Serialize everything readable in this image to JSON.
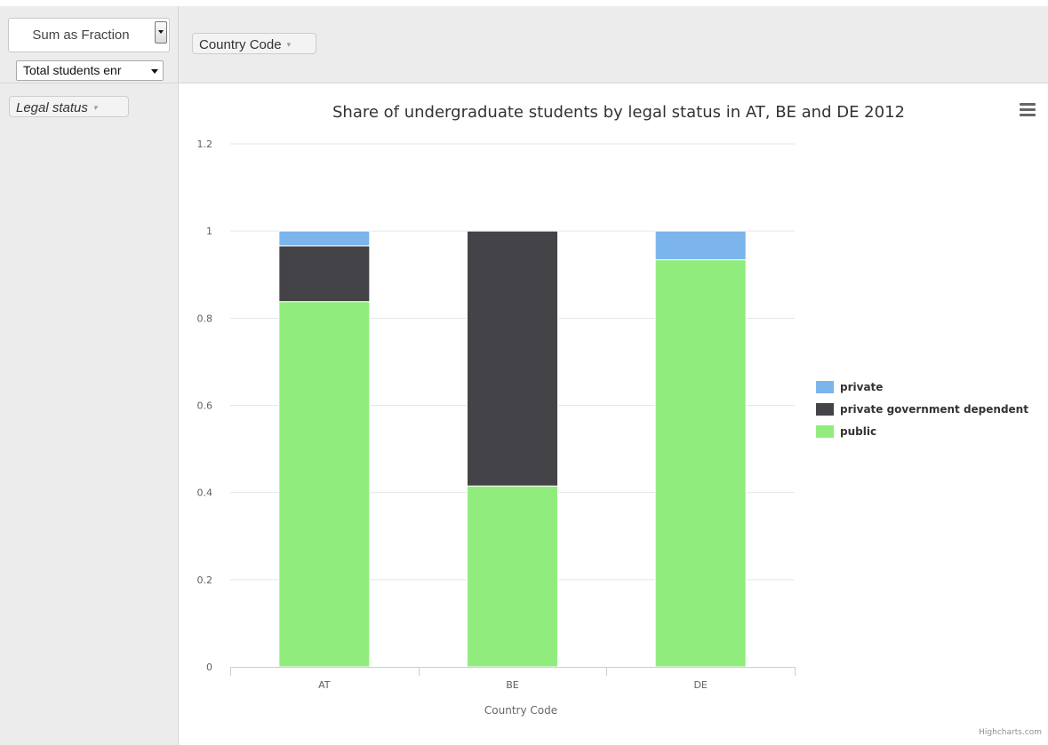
{
  "controls": {
    "aggregator": "Sum as Fraction",
    "value_field": "Total students enr",
    "column_attribute": "Country Code",
    "row_attribute": "Legal status",
    "pill_arrow": "▾"
  },
  "menu_icon": "hamburger-menu-icon",
  "credit": "Highcharts.com",
  "colors": {
    "private": "#7cb5ec",
    "private government dependent": "#434348",
    "public": "#90ed7d"
  },
  "chart_data": {
    "type": "bar",
    "stacked": true,
    "title": "Share of undergraduate students by legal status in AT, BE and DE 2012",
    "xlabel": "Country Code",
    "ylabel": "",
    "categories": [
      "AT",
      "BE",
      "DE"
    ],
    "ylim": [
      0,
      1.2
    ],
    "yticks": [
      "0",
      "0.2",
      "0.4",
      "0.6",
      "0.8",
      "1",
      "1.2"
    ],
    "grid": true,
    "legend_position": "right",
    "series": [
      {
        "name": "private",
        "color": "#7cb5ec",
        "values": [
          0.034,
          0.0,
          0.066
        ]
      },
      {
        "name": "private government dependent",
        "color": "#434348",
        "values": [
          0.128,
          0.585,
          0.0
        ]
      },
      {
        "name": "public",
        "color": "#90ed7d",
        "values": [
          0.838,
          0.415,
          0.934
        ]
      }
    ]
  }
}
